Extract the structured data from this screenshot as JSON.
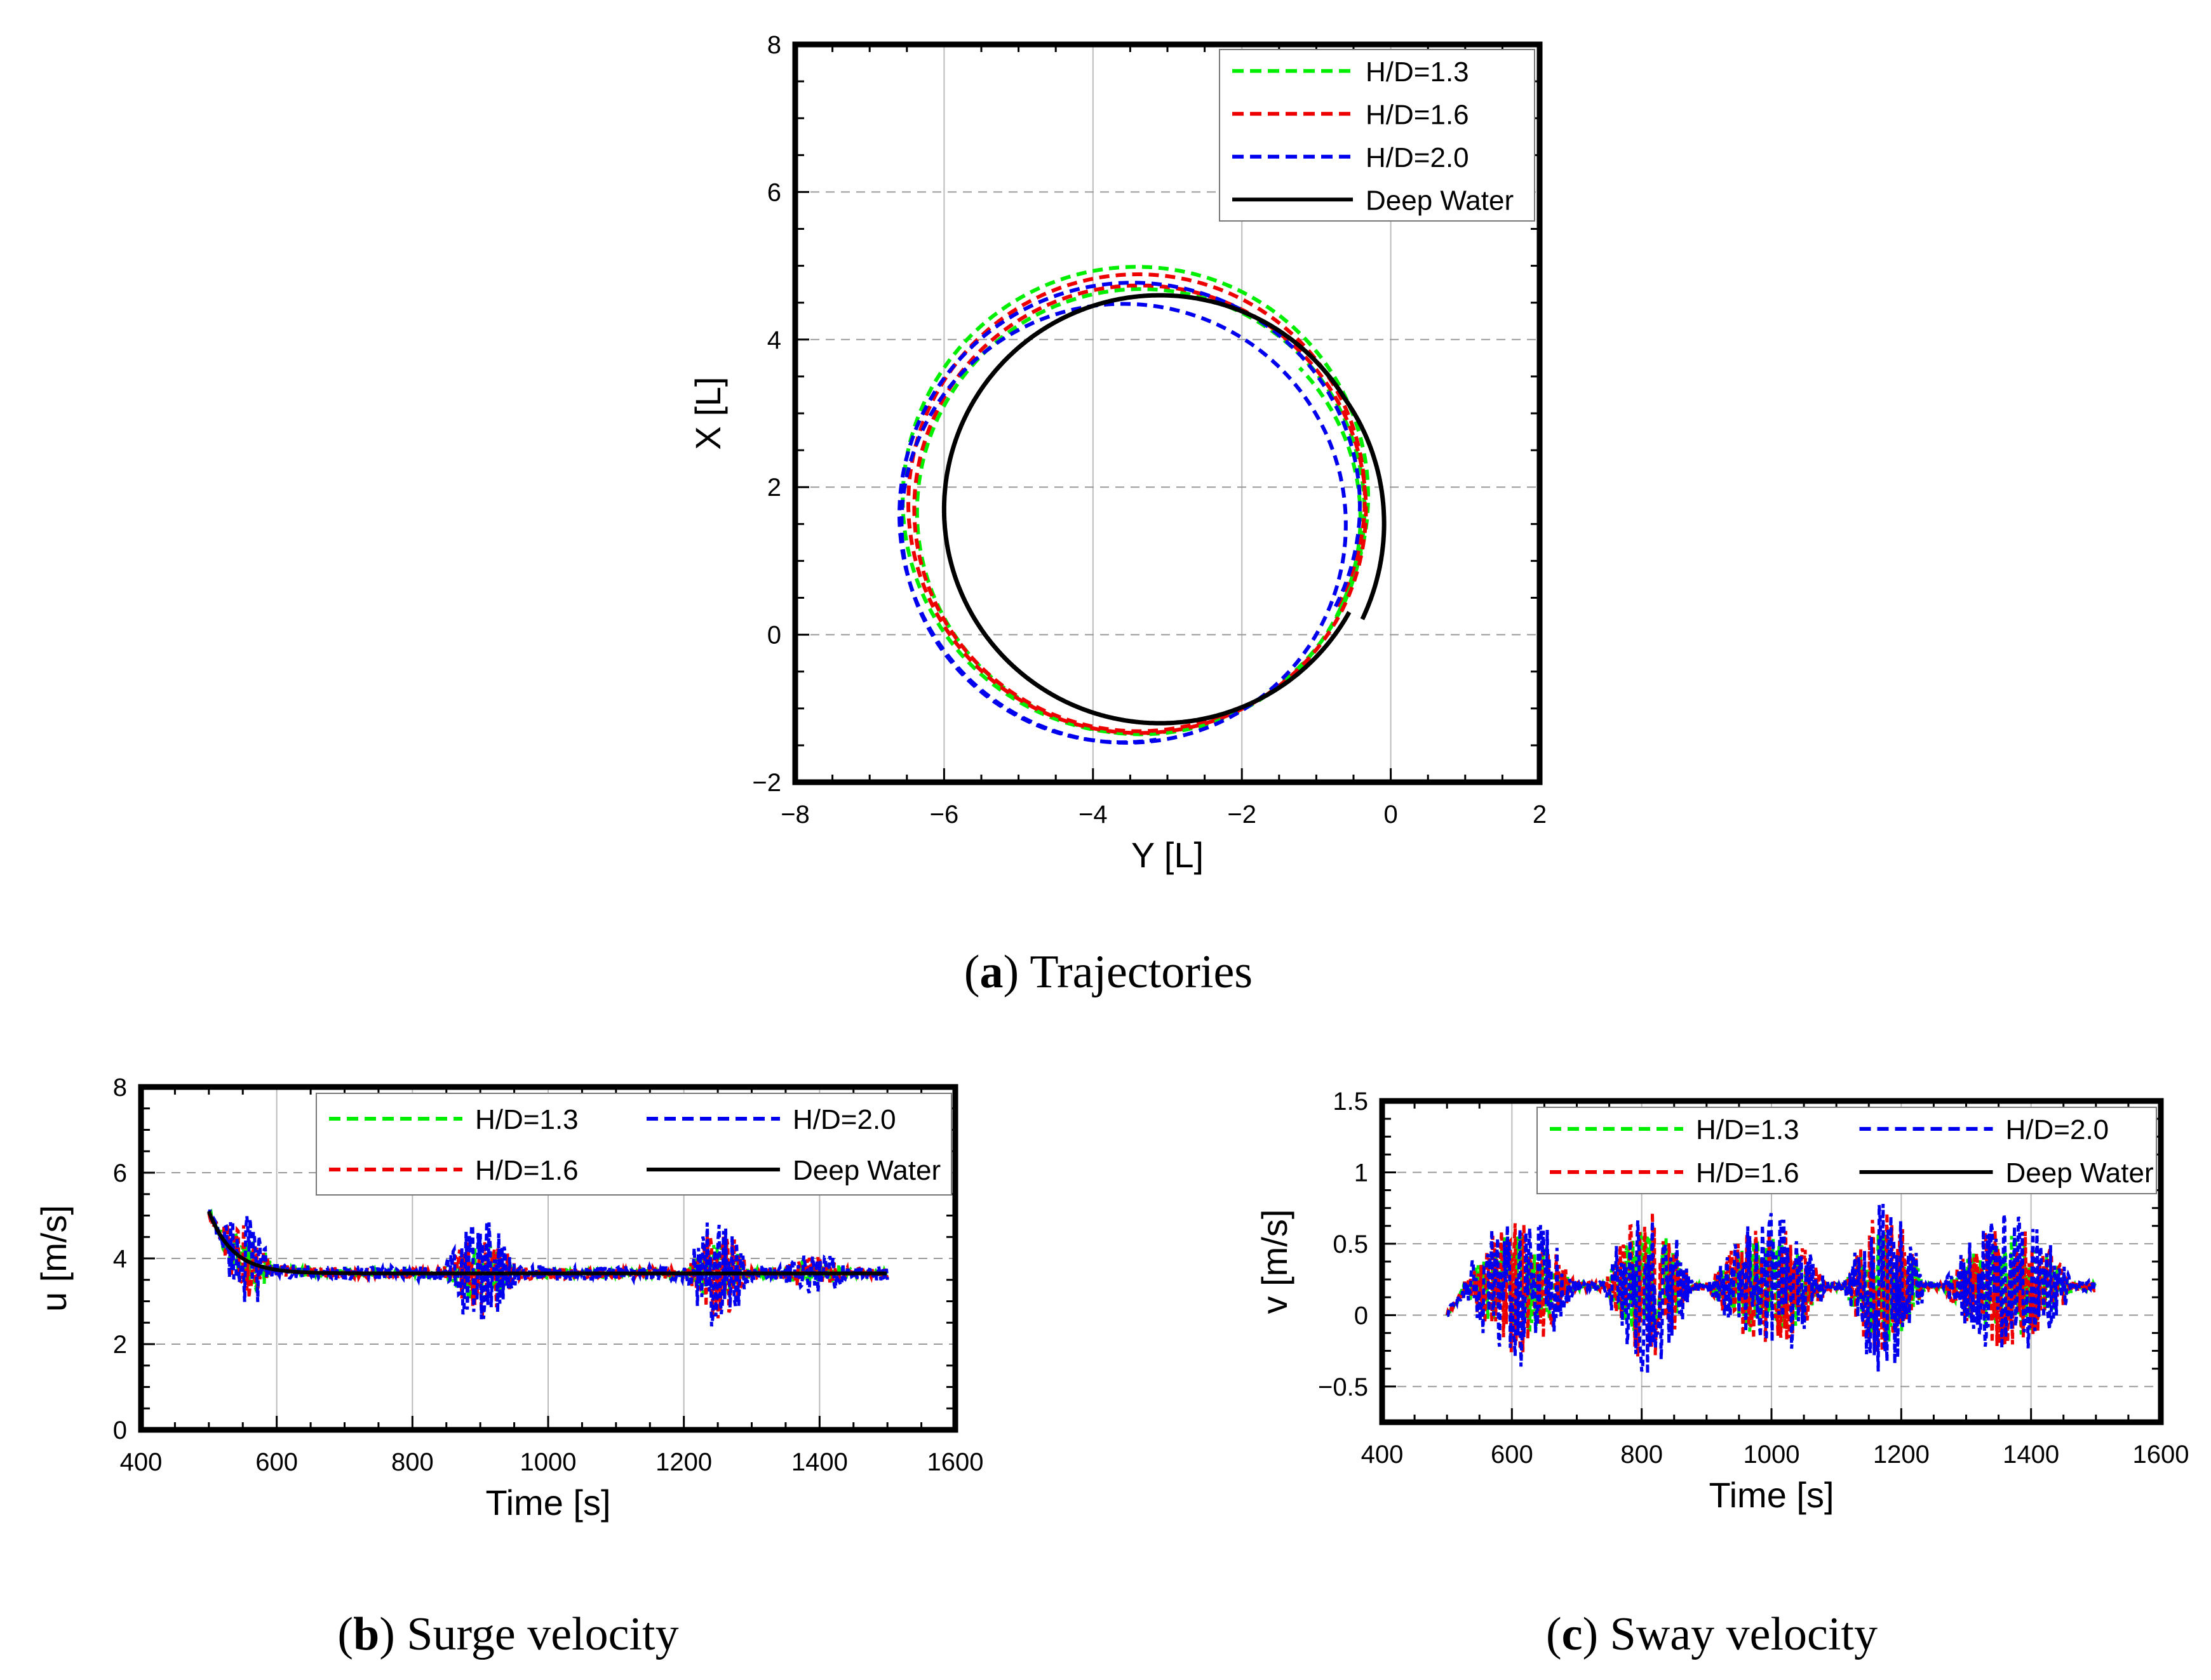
{
  "captions": {
    "a": {
      "letter": "a",
      "text": "Trajectories"
    },
    "b": {
      "letter": "b",
      "text": "Surge velocity"
    },
    "c": {
      "letter": "c",
      "text": "Sway velocity"
    }
  },
  "colors": {
    "H13": "#00ee00",
    "H16": "#ee0000",
    "H20": "#0000ee",
    "deep": "#000000",
    "grid": "#aaaaaa"
  },
  "chart_data": [
    {
      "id": "a",
      "type": "line",
      "title": "(a) Trajectories",
      "xlabel": "Y [L]",
      "ylabel": "X [L]",
      "xlim": [
        -8,
        2
      ],
      "ylim": [
        -2,
        8
      ],
      "xticks": [
        -8,
        -6,
        -4,
        -2,
        0,
        2
      ],
      "yticks": [
        -2,
        0,
        2,
        4,
        6,
        8
      ],
      "grid": true,
      "legend_position": "top-right",
      "series": [
        {
          "name": "H/D=1.3",
          "style": "dashed",
          "color_key": "H13",
          "type": "spiral",
          "start": [
            0,
            0
          ],
          "centers": [
            [
              -3.5,
              1.9
            ],
            [
              -3.4,
              1.7
            ],
            [
              -3.35,
              1.6
            ]
          ],
          "radii": [
            3.2,
            3.05,
            2.95,
            2.85
          ],
          "turns": 2.2
        },
        {
          "name": "H/D=1.6",
          "style": "dashed",
          "color_key": "H16",
          "type": "spiral",
          "start": [
            0,
            0
          ],
          "centers": [
            [
              -3.45,
              1.85
            ],
            [
              -3.38,
              1.7
            ]
          ],
          "radii": [
            3.1,
            3.05,
            3.0
          ],
          "turns": 1.9
        },
        {
          "name": "H/D=2.0",
          "style": "dashed",
          "color_key": "H20",
          "type": "spiral",
          "start": [
            0,
            0
          ],
          "centers": [
            [
              -3.5,
              1.8
            ],
            [
              -3.6,
              1.5
            ]
          ],
          "radii": [
            3.1,
            3.0,
            2.95
          ],
          "turns": 1.85
        },
        {
          "name": "Deep Water",
          "style": "solid",
          "color_key": "deep",
          "type": "circle",
          "start": [
            0,
            0
          ],
          "center": [
            -3.1,
            1.7
          ],
          "radius": 2.9,
          "turns": 1.0
        }
      ]
    },
    {
      "id": "b",
      "type": "line",
      "title": "(b) Surge velocity",
      "xlabel": "Time [s]",
      "ylabel": "u [m/s]",
      "xlim": [
        400,
        1600
      ],
      "ylim": [
        0,
        8
      ],
      "xticks": [
        400,
        600,
        800,
        1000,
        1200,
        1400,
        1600
      ],
      "yticks": [
        0,
        2,
        4,
        6,
        8
      ],
      "grid": true,
      "legend_position": "top-right",
      "time_range": [
        500,
        1500
      ],
      "deep_water": {
        "start": 5.1,
        "steady": 3.65,
        "tau": 35
      },
      "oscillation_bursts": [
        [
          840,
          960,
          0.9
        ],
        [
          1200,
          1300,
          1.0
        ],
        [
          510,
          600,
          0.8
        ],
        [
          1330,
          1460,
          0.35
        ]
      ],
      "series": [
        {
          "name": "H/D=1.3",
          "style": "dashed",
          "color_key": "H13"
        },
        {
          "name": "H/D=2.0",
          "style": "dashed",
          "color_key": "H20"
        },
        {
          "name": "H/D=1.6",
          "style": "dashed",
          "color_key": "H16"
        },
        {
          "name": "Deep Water",
          "style": "solid",
          "color_key": "deep"
        }
      ]
    },
    {
      "id": "c",
      "type": "line",
      "title": "(c) Sway velocity",
      "xlabel": "Time [s]",
      "ylabel": "v [m/s]",
      "xlim": [
        400,
        1600
      ],
      "ylim": [
        -0.75,
        1.5
      ],
      "xticks": [
        400,
        600,
        800,
        1000,
        1200,
        1400,
        1600
      ],
      "yticks": [
        -0.5,
        0,
        0.5,
        1,
        1.5
      ],
      "ytick_labels": [
        "−0.5",
        "0",
        "0.5",
        "1",
        "1.5"
      ],
      "grid": true,
      "legend_position": "top-right",
      "time_range": [
        500,
        1500
      ],
      "mean": 0.2,
      "oscillation_bursts": [
        [
          520,
          700,
          0.45
        ],
        [
          740,
          880,
          0.5
        ],
        [
          900,
          1090,
          0.42
        ],
        [
          1110,
          1240,
          0.5
        ],
        [
          1260,
          1470,
          0.42
        ]
      ],
      "series": [
        {
          "name": "H/D=1.3",
          "style": "dashed",
          "color_key": "H13"
        },
        {
          "name": "H/D=2.0",
          "style": "dashed",
          "color_key": "H20"
        },
        {
          "name": "H/D=1.6",
          "style": "dashed",
          "color_key": "H16"
        },
        {
          "name": "Deep Water",
          "style": "solid",
          "color_key": "deep"
        }
      ]
    }
  ]
}
